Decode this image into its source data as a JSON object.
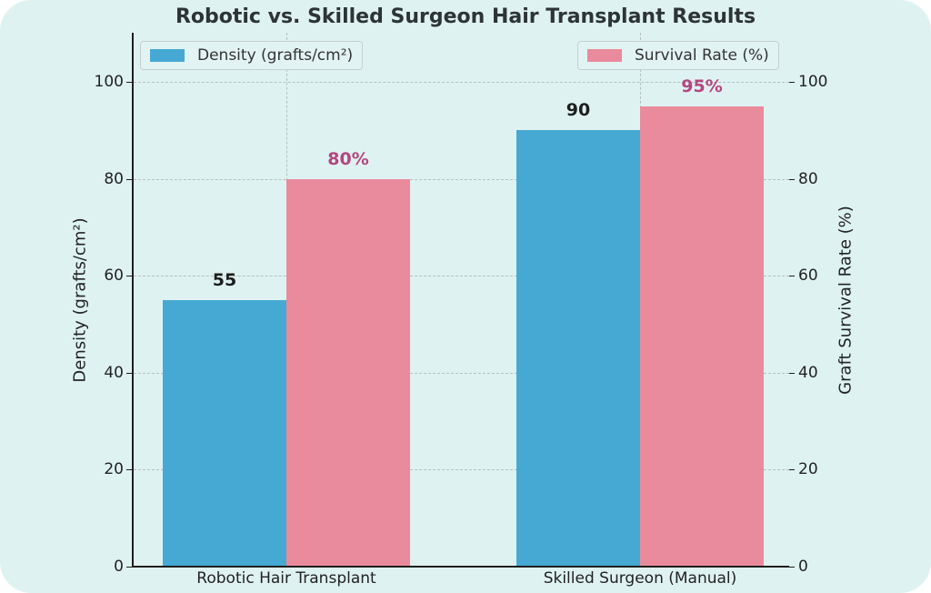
{
  "chart_data": {
    "type": "bar",
    "title": "Robotic vs. Skilled Surgeon Hair Transplant Results",
    "categories": [
      "Robotic Hair Transplant",
      "Skilled Surgeon (Manual)"
    ],
    "series": [
      {
        "name": "Density (grafts/cm²)",
        "axis": "left",
        "values": [
          55,
          90
        ],
        "labels": [
          "55",
          "90"
        ],
        "color": "#45a9d4",
        "label_color": "#1e1e1e"
      },
      {
        "name": "Survival Rate (%)",
        "axis": "right",
        "values": [
          80,
          95
        ],
        "labels": [
          "80%",
          "95%"
        ],
        "color": "#e98b9c",
        "label_color": "#b5467f"
      }
    ],
    "xlabel": "",
    "ylabel": "Density (grafts/cm²)",
    "ylabel_right": "Graft Survival Rate (%)",
    "ylim": [
      0,
      110
    ],
    "ylim_right": [
      0,
      110
    ],
    "yticks": [
      0,
      20,
      40,
      60,
      80,
      100
    ],
    "yticks_right": [
      0,
      20,
      40,
      60,
      80,
      100
    ],
    "grid": true,
    "legend": [
      {
        "label": "Density (grafts/cm²)",
        "position": "upper left"
      },
      {
        "label": "Survival Rate (%)",
        "position": "upper right"
      }
    ]
  },
  "colors": {
    "background": "#dff2f2",
    "density": "#45a9d4",
    "survival": "#e98b9c",
    "survival_label": "#b5467f"
  }
}
